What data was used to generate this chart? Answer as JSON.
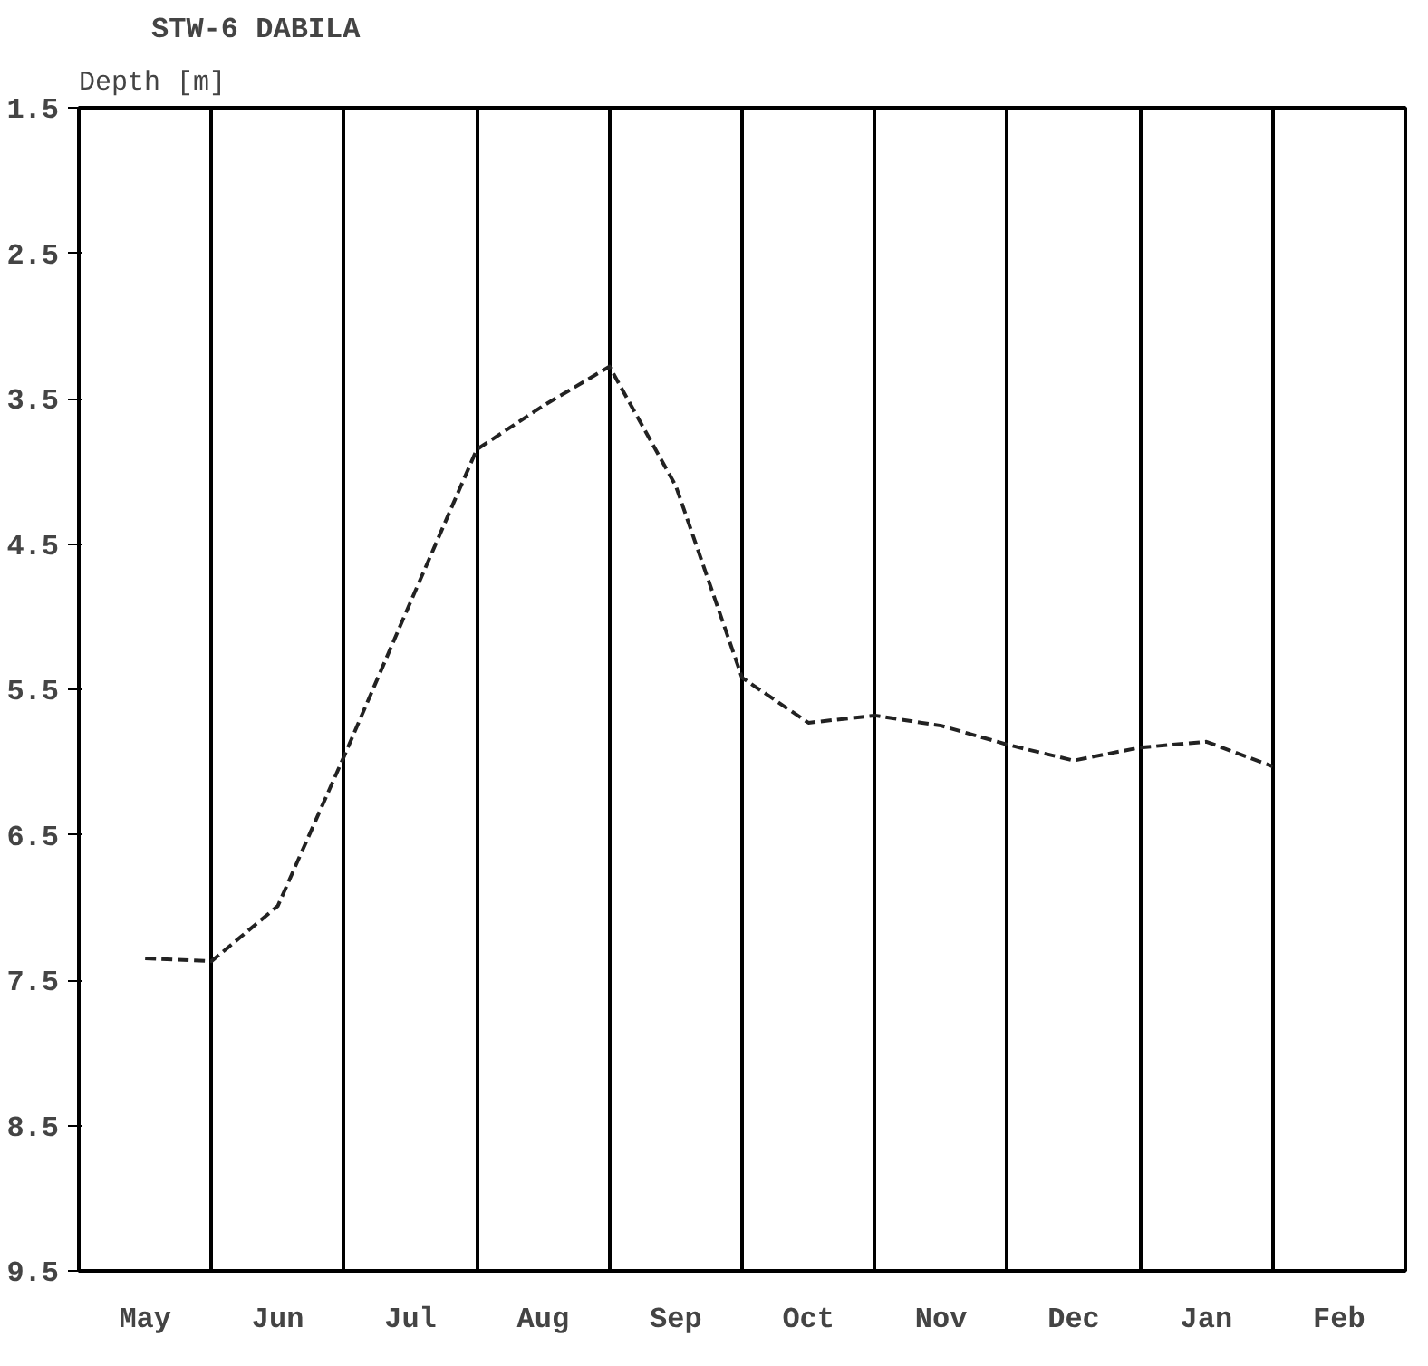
{
  "chart_data": {
    "type": "line",
    "title": "STW-6 DABILA",
    "ylabel": "Depth [m]",
    "categories": [
      "May",
      null,
      "Jun",
      null,
      "Jul",
      null,
      "Aug",
      null,
      "Sep",
      null,
      "Oct",
      null,
      "Nov",
      null,
      "Dec",
      null,
      "Jan",
      null,
      "Feb"
    ],
    "series": [
      {
        "color": "#222222",
        "values": [
          7.35,
          7.37,
          6.99,
          5.96,
          4.9,
          3.85,
          3.55,
          3.28,
          4.1,
          5.42,
          5.73,
          5.68,
          5.75,
          5.88,
          5.99,
          5.9,
          5.86,
          6.03,
          null
        ]
      }
    ],
    "ylim": [
      9.5,
      1.5
    ],
    "yticks": [
      1.5,
      2.5,
      3.5,
      4.5,
      5.5,
      6.5,
      7.5,
      8.5,
      9.5
    ],
    "grid": "x",
    "line_style": "dashed",
    "marker": "none"
  }
}
